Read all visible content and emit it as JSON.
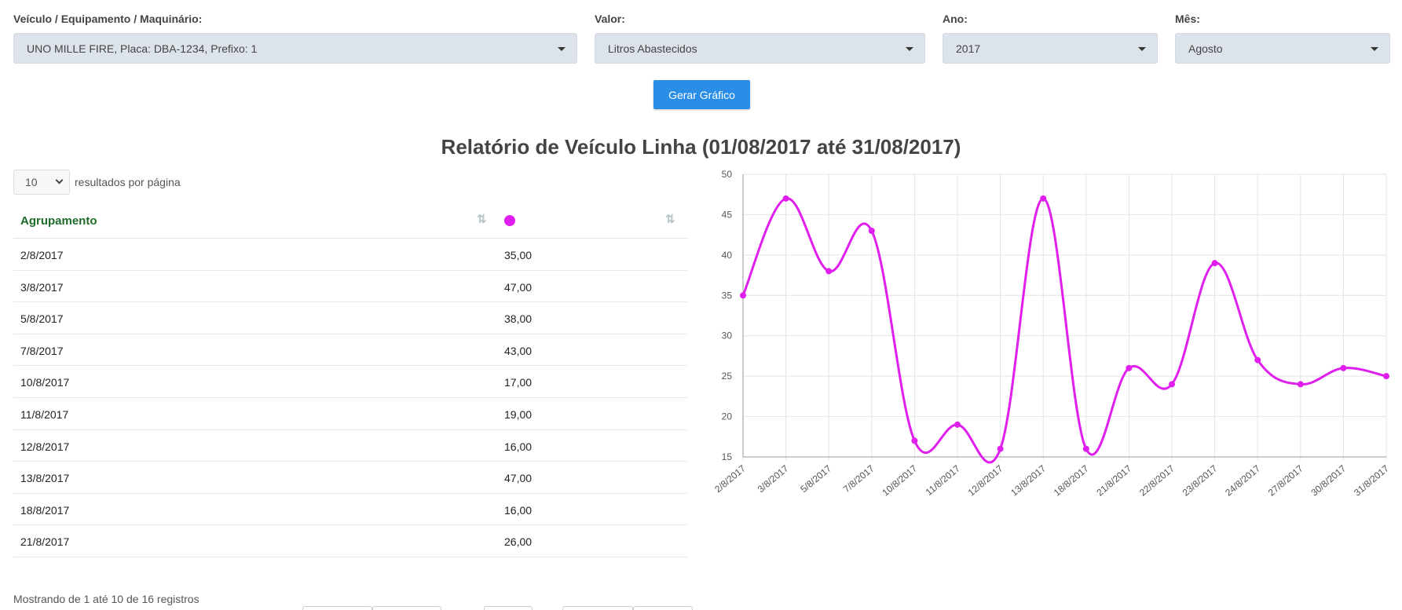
{
  "filters": {
    "vehicle": {
      "label": "Veículo / Equipamento / Maquinário:",
      "value": "UNO MILLE FIRE, Placa: DBA-1234, Prefixo: 1"
    },
    "valor": {
      "label": "Valor:",
      "value": "Litros Abastecidos"
    },
    "ano": {
      "label": "Ano:",
      "value": "2017"
    },
    "mes": {
      "label": "Mês:",
      "value": "Agosto"
    }
  },
  "generate_label": "Gerar Gráfico",
  "report_title": "Relatório de Veículo Linha (01/08/2017 até 31/08/2017)",
  "per_page": {
    "value": "10",
    "label": "resultados por página"
  },
  "table": {
    "header": "Agrupamento",
    "rows": [
      {
        "date": "2/8/2017",
        "value": "35,00"
      },
      {
        "date": "3/8/2017",
        "value": "47,00"
      },
      {
        "date": "5/8/2017",
        "value": "38,00"
      },
      {
        "date": "7/8/2017",
        "value": "43,00"
      },
      {
        "date": "10/8/2017",
        "value": "17,00"
      },
      {
        "date": "11/8/2017",
        "value": "19,00"
      },
      {
        "date": "12/8/2017",
        "value": "16,00"
      },
      {
        "date": "13/8/2017",
        "value": "47,00"
      },
      {
        "date": "18/8/2017",
        "value": "16,00"
      },
      {
        "date": "21/8/2017",
        "value": "26,00"
      }
    ]
  },
  "info_text": "Mostrando de 1 até 10 de 16 registros",
  "colors": {
    "accent": "#2a8ee6",
    "series": "#e01fee",
    "header_green": "#1f6b2a"
  },
  "chart_data": {
    "type": "line",
    "categories": [
      "2/8/2017",
      "3/8/2017",
      "5/8/2017",
      "7/8/2017",
      "10/8/2017",
      "11/8/2017",
      "12/8/2017",
      "13/8/2017",
      "18/8/2017",
      "21/8/2017",
      "22/8/2017",
      "23/8/2017",
      "24/8/2017",
      "27/8/2017",
      "30/8/2017",
      "31/8/2017"
    ],
    "series": [
      {
        "values": [
          35,
          47,
          38,
          43,
          17,
          19,
          16,
          47,
          16,
          26,
          24,
          39,
          27,
          24,
          26,
          25
        ]
      }
    ],
    "yticks": [
      15,
      20,
      25,
      30,
      35,
      40,
      45,
      50
    ],
    "ylim": [
      15,
      50
    ],
    "grid": true,
    "smooth": true
  }
}
